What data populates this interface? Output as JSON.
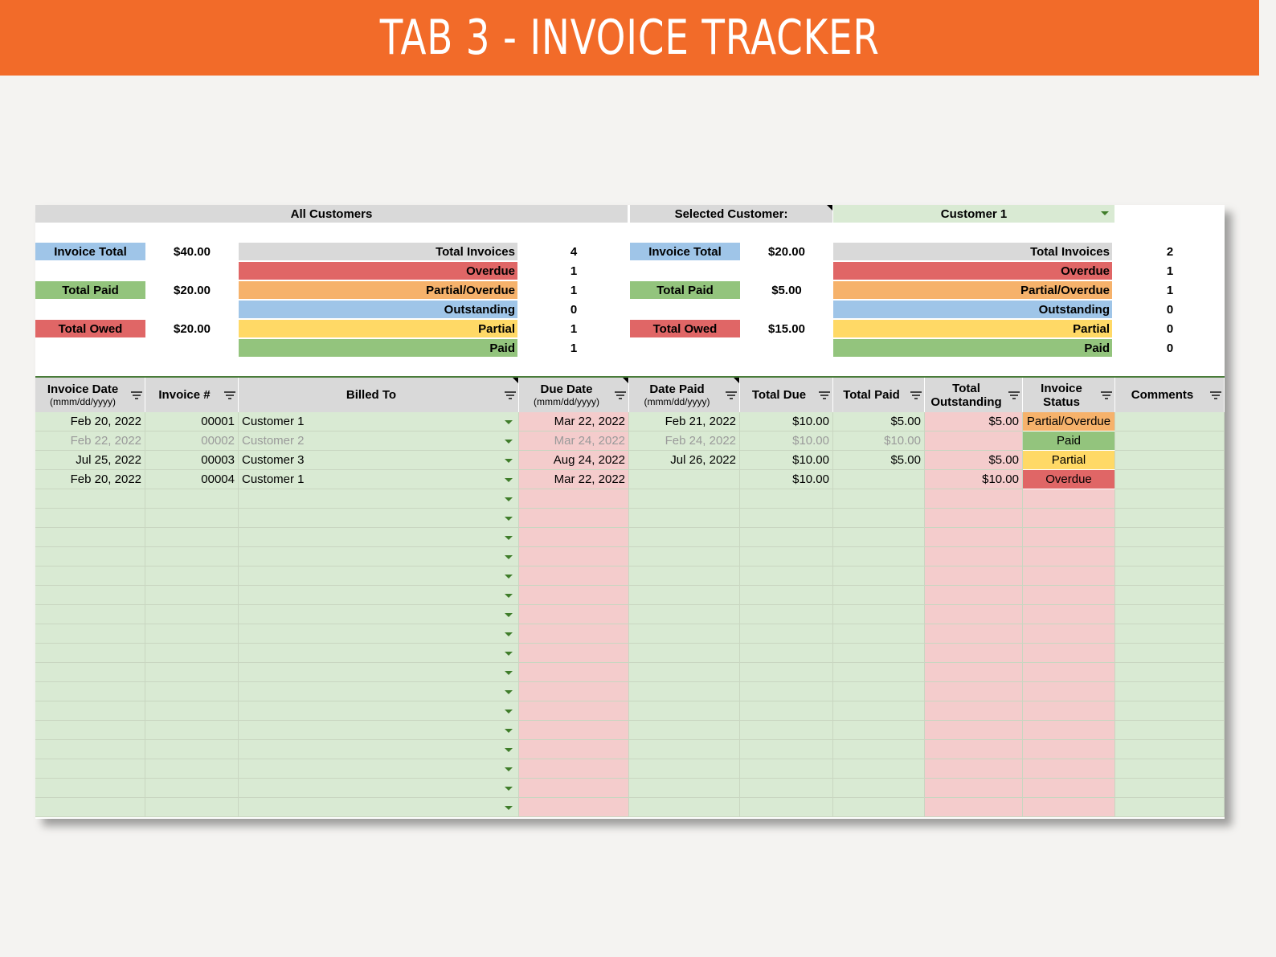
{
  "banner": {
    "title": "TAB 3 - INVOICE TRACKER"
  },
  "colors": {
    "banner": "#f26b29",
    "blue": "#9fc5e8",
    "green": "#93c47d",
    "red": "#e06666",
    "orange": "#f6b26b",
    "yellow": "#ffd966",
    "grey": "#d9d9d9",
    "row_green": "#d9ead3",
    "row_pink": "#f4cccc"
  },
  "summary": {
    "all_customers_label": "All Customers",
    "selected_customer_label": "Selected Customer:",
    "selected_customer_value": "Customer 1",
    "all": {
      "invoice_total_label": "Invoice Total",
      "invoice_total": "$40.00",
      "total_paid_label": "Total Paid",
      "total_paid": "$20.00",
      "total_owed_label": "Total Owed",
      "total_owed": "$20.00",
      "counts": [
        {
          "label": "Total Invoices",
          "value": "4"
        },
        {
          "label": "Overdue",
          "value": "1"
        },
        {
          "label": "Partial/Overdue",
          "value": "1"
        },
        {
          "label": "Outstanding",
          "value": "0"
        },
        {
          "label": "Partial",
          "value": "1"
        },
        {
          "label": "Paid",
          "value": "1"
        }
      ]
    },
    "selected": {
      "invoice_total_label": "Invoice Total",
      "invoice_total": "$20.00",
      "total_paid_label": "Total Paid",
      "total_paid": "$5.00",
      "total_owed_label": "Total Owed",
      "total_owed": "$15.00",
      "counts": [
        {
          "label": "Total Invoices",
          "value": "2"
        },
        {
          "label": "Overdue",
          "value": "1"
        },
        {
          "label": "Partial/Overdue",
          "value": "1"
        },
        {
          "label": "Outstanding",
          "value": "0"
        },
        {
          "label": "Partial",
          "value": "0"
        },
        {
          "label": "Paid",
          "value": "0"
        }
      ]
    }
  },
  "table": {
    "headers": [
      {
        "label": "Invoice Date",
        "sub": "(mmm/dd/yyyy)"
      },
      {
        "label": "Invoice #",
        "sub": ""
      },
      {
        "label": "Billed To",
        "sub": ""
      },
      {
        "label": "Due Date",
        "sub": "(mmm/dd/yyyy)"
      },
      {
        "label": "Date Paid",
        "sub": "(mmm/dd/yyyy)"
      },
      {
        "label": "Total Due",
        "sub": ""
      },
      {
        "label": "Total Paid",
        "sub": ""
      },
      {
        "label": "Total Outstanding",
        "sub": ""
      },
      {
        "label": "Invoice Status",
        "sub": ""
      },
      {
        "label": "Comments",
        "sub": ""
      }
    ],
    "rows": [
      {
        "invoice_date": "Feb 20, 2022",
        "invoice_no": "00001",
        "billed_to": "Customer 1",
        "due_date": "Mar 22, 2022",
        "date_paid": "Feb 21, 2022",
        "total_due": "$10.00",
        "total_paid": "$5.00",
        "total_outstanding": "$5.00",
        "status": "Partial/Overdue",
        "comments": ""
      },
      {
        "invoice_date": "Feb 22, 2022",
        "invoice_no": "00002",
        "billed_to": "Customer 2",
        "due_date": "Mar 24, 2022",
        "date_paid": "Feb 24, 2022",
        "total_due": "$10.00",
        "total_paid": "$10.00",
        "total_outstanding": "",
        "status": "Paid",
        "comments": ""
      },
      {
        "invoice_date": "Jul 25, 2022",
        "invoice_no": "00003",
        "billed_to": "Customer 3",
        "due_date": "Aug 24, 2022",
        "date_paid": "Jul 26, 2022",
        "total_due": "$10.00",
        "total_paid": "$5.00",
        "total_outstanding": "$5.00",
        "status": "Partial",
        "comments": ""
      },
      {
        "invoice_date": "Feb 20, 2022",
        "invoice_no": "00004",
        "billed_to": "Customer 1",
        "due_date": "Mar 22, 2022",
        "date_paid": "",
        "total_due": "$10.00",
        "total_paid": "",
        "total_outstanding": "$10.00",
        "status": "Overdue",
        "comments": ""
      }
    ],
    "empty_row_count": 17
  }
}
